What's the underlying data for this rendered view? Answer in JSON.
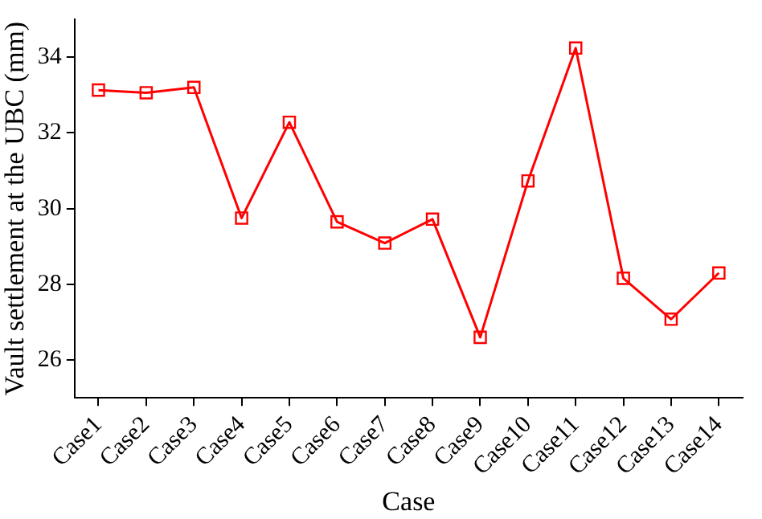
{
  "chart_data": {
    "type": "line",
    "xlabel": "Case",
    "ylabel": "Vault settlement at the UBC (mm)",
    "categories": [
      "Case1",
      "Case2",
      "Case3",
      "Case4",
      "Case5",
      "Case6",
      "Case7",
      "Case8",
      "Case9",
      "Case10",
      "Case11",
      "Case12",
      "Case13",
      "Case14"
    ],
    "series": [
      {
        "color": "#ff0000",
        "values": [
          33.13,
          33.06,
          33.2,
          29.75,
          32.28,
          29.65,
          29.09,
          29.72,
          26.6,
          30.73,
          34.24,
          28.16,
          27.08,
          28.3
        ]
      }
    ],
    "ylim": [
      25,
      35
    ],
    "yticks": [
      26,
      28,
      30,
      32,
      34
    ],
    "marker": "square",
    "line_style": "solid",
    "grid": false,
    "legend": false
  }
}
